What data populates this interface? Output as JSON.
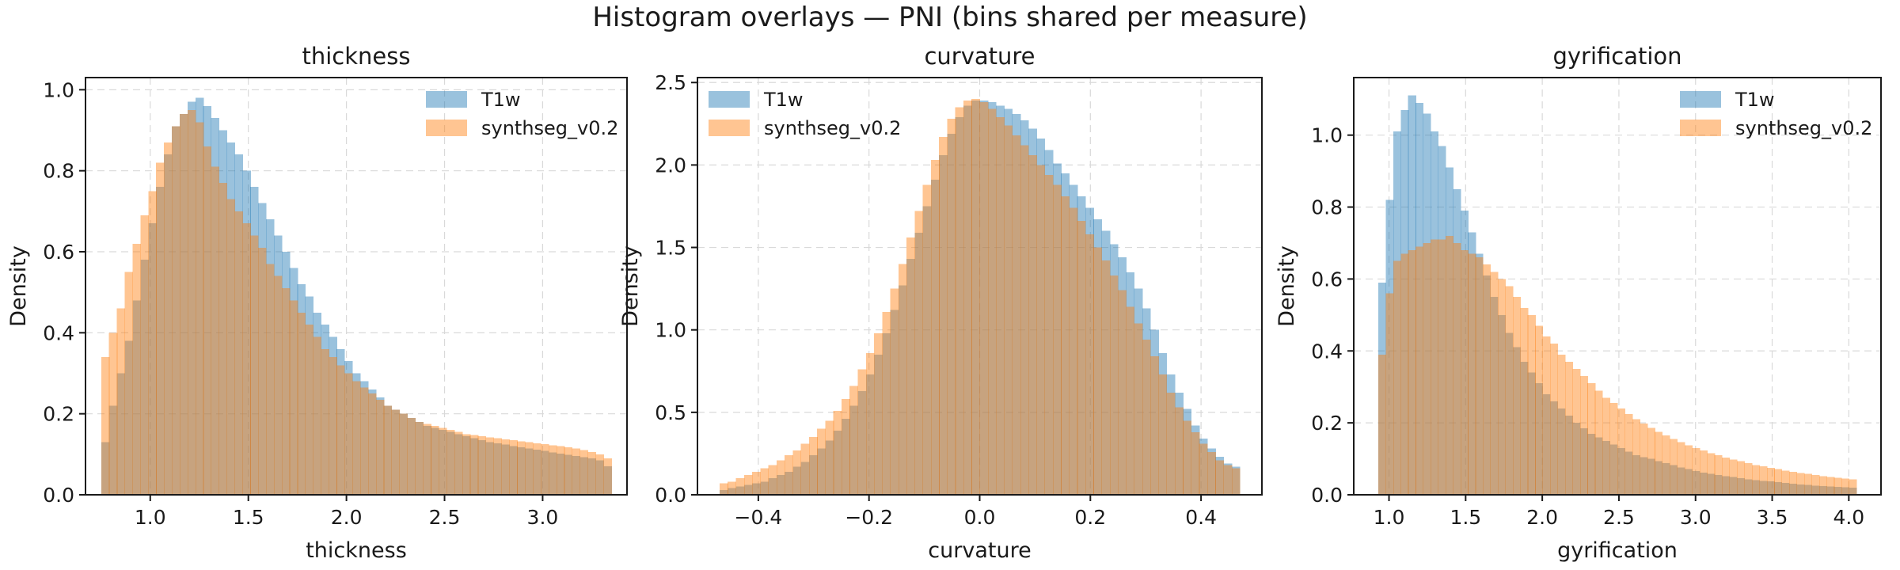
{
  "figure": {
    "suptitle": "Histogram overlays — PNI (bins shared per measure)"
  },
  "chart_data": [
    {
      "type": "histogram",
      "title": "thickness",
      "xlabel": "thickness",
      "ylabel": "Density",
      "xlim": [
        0.67,
        3.43
      ],
      "ylim": [
        0,
        1.03
      ],
      "xticks": [
        "1.0",
        "1.5",
        "2.0",
        "2.5",
        "3.0"
      ],
      "yticks": [
        "0.0",
        "0.2",
        "0.4",
        "0.6",
        "0.8",
        "1.0"
      ],
      "grid": true,
      "legend_position": "top-right",
      "bins": {
        "start": 0.75,
        "end": 3.35,
        "count": 65
      },
      "series": [
        {
          "name": "T1w",
          "color": "#1f77b4",
          "alpha": 0.45,
          "values": [
            0.13,
            0.22,
            0.3,
            0.38,
            0.48,
            0.58,
            0.67,
            0.76,
            0.84,
            0.91,
            0.94,
            0.97,
            0.98,
            0.96,
            0.93,
            0.9,
            0.87,
            0.84,
            0.8,
            0.76,
            0.72,
            0.68,
            0.64,
            0.6,
            0.56,
            0.52,
            0.49,
            0.45,
            0.42,
            0.39,
            0.36,
            0.33,
            0.3,
            0.28,
            0.26,
            0.24,
            0.22,
            0.21,
            0.2,
            0.19,
            0.18,
            0.17,
            0.165,
            0.16,
            0.155,
            0.15,
            0.145,
            0.14,
            0.135,
            0.13,
            0.127,
            0.124,
            0.12,
            0.117,
            0.114,
            0.111,
            0.108,
            0.105,
            0.102,
            0.099,
            0.096,
            0.093,
            0.09,
            0.085,
            0.07
          ]
        },
        {
          "name": "synthseg_v0.2",
          "color": "#ff7f0e",
          "alpha": 0.45,
          "values": [
            0.34,
            0.4,
            0.46,
            0.55,
            0.62,
            0.69,
            0.75,
            0.82,
            0.87,
            0.91,
            0.94,
            0.95,
            0.92,
            0.86,
            0.81,
            0.77,
            0.73,
            0.7,
            0.67,
            0.64,
            0.61,
            0.57,
            0.54,
            0.51,
            0.48,
            0.45,
            0.42,
            0.39,
            0.36,
            0.34,
            0.32,
            0.3,
            0.28,
            0.265,
            0.25,
            0.235,
            0.22,
            0.21,
            0.2,
            0.19,
            0.18,
            0.175,
            0.17,
            0.165,
            0.16,
            0.155,
            0.15,
            0.148,
            0.145,
            0.142,
            0.14,
            0.137,
            0.135,
            0.132,
            0.13,
            0.127,
            0.125,
            0.122,
            0.12,
            0.117,
            0.114,
            0.11,
            0.106,
            0.1,
            0.09
          ]
        }
      ]
    },
    {
      "type": "histogram",
      "title": "curvature",
      "xlabel": "curvature",
      "ylabel": "Density",
      "xlim": [
        -0.51,
        0.51
      ],
      "ylim": [
        0,
        2.53
      ],
      "xticks": [
        "−0.4",
        "−0.2",
        "0.0",
        "0.2",
        "0.4"
      ],
      "yticks": [
        "0.0",
        "0.5",
        "1.0",
        "1.5",
        "2.0",
        "2.5"
      ],
      "grid": true,
      "legend_position": "top-left",
      "bins": {
        "start": -0.47,
        "end": 0.47,
        "count": 64
      },
      "series": [
        {
          "name": "T1w",
          "color": "#1f77b4",
          "alpha": 0.45,
          "values": [
            0.03,
            0.04,
            0.05,
            0.06,
            0.07,
            0.08,
            0.1,
            0.12,
            0.14,
            0.17,
            0.2,
            0.24,
            0.28,
            0.33,
            0.39,
            0.46,
            0.54,
            0.63,
            0.73,
            0.85,
            0.98,
            1.12,
            1.27,
            1.43,
            1.59,
            1.75,
            1.91,
            2.06,
            2.19,
            2.29,
            2.36,
            2.39,
            2.39,
            2.38,
            2.36,
            2.34,
            2.31,
            2.27,
            2.22,
            2.16,
            2.09,
            2.01,
            1.95,
            1.88,
            1.81,
            1.74,
            1.67,
            1.6,
            1.52,
            1.44,
            1.35,
            1.25,
            1.13,
            1.0,
            0.86,
            0.73,
            0.62,
            0.52,
            0.42,
            0.34,
            0.28,
            0.23,
            0.19,
            0.17
          ]
        },
        {
          "name": "synthseg_v0.2",
          "color": "#ff7f0e",
          "alpha": 0.45,
          "values": [
            0.07,
            0.08,
            0.1,
            0.12,
            0.14,
            0.16,
            0.18,
            0.21,
            0.24,
            0.27,
            0.31,
            0.35,
            0.4,
            0.45,
            0.51,
            0.58,
            0.66,
            0.76,
            0.86,
            0.98,
            1.11,
            1.25,
            1.4,
            1.56,
            1.72,
            1.88,
            2.03,
            2.17,
            2.28,
            2.35,
            2.39,
            2.4,
            2.38,
            2.34,
            2.29,
            2.24,
            2.18,
            2.12,
            2.06,
            2.0,
            1.94,
            1.88,
            1.81,
            1.74,
            1.66,
            1.58,
            1.5,
            1.42,
            1.33,
            1.24,
            1.14,
            1.04,
            0.94,
            0.84,
            0.73,
            0.62,
            0.53,
            0.45,
            0.38,
            0.31,
            0.26,
            0.21,
            0.18,
            0.16
          ]
        }
      ]
    },
    {
      "type": "histogram",
      "title": "gyrification",
      "xlabel": "gyrification",
      "ylabel": "Density",
      "xlim": [
        0.77,
        4.21
      ],
      "ylim": [
        0,
        1.16
      ],
      "xticks": [
        "1.0",
        "1.5",
        "2.0",
        "2.5",
        "3.0",
        "3.5",
        "4.0"
      ],
      "yticks": [
        "0.0",
        "0.2",
        "0.4",
        "0.6",
        "0.8",
        "1.0"
      ],
      "grid": true,
      "legend_position": "top-right",
      "bins": {
        "start": 0.93,
        "end": 4.05,
        "count": 64
      },
      "series": [
        {
          "name": "T1w",
          "color": "#1f77b4",
          "alpha": 0.45,
          "values": [
            0.59,
            0.82,
            1.01,
            1.07,
            1.11,
            1.09,
            1.06,
            1.01,
            0.97,
            0.91,
            0.85,
            0.79,
            0.73,
            0.67,
            0.61,
            0.55,
            0.5,
            0.45,
            0.41,
            0.37,
            0.34,
            0.31,
            0.28,
            0.26,
            0.24,
            0.22,
            0.2,
            0.185,
            0.17,
            0.16,
            0.15,
            0.14,
            0.13,
            0.12,
            0.11,
            0.105,
            0.1,
            0.094,
            0.088,
            0.082,
            0.076,
            0.071,
            0.066,
            0.062,
            0.058,
            0.055,
            0.052,
            0.049,
            0.046,
            0.043,
            0.041,
            0.039,
            0.037,
            0.035,
            0.033,
            0.031,
            0.029,
            0.027,
            0.025,
            0.024,
            0.023,
            0.022,
            0.021,
            0.02
          ]
        },
        {
          "name": "synthseg_v0.2",
          "color": "#ff7f0e",
          "alpha": 0.45,
          "values": [
            0.39,
            0.56,
            0.65,
            0.67,
            0.68,
            0.69,
            0.7,
            0.71,
            0.71,
            0.72,
            0.7,
            0.68,
            0.67,
            0.66,
            0.64,
            0.62,
            0.6,
            0.58,
            0.55,
            0.52,
            0.5,
            0.47,
            0.44,
            0.42,
            0.39,
            0.37,
            0.35,
            0.33,
            0.31,
            0.29,
            0.27,
            0.255,
            0.24,
            0.225,
            0.21,
            0.198,
            0.186,
            0.175,
            0.165,
            0.155,
            0.146,
            0.138,
            0.13,
            0.123,
            0.116,
            0.11,
            0.104,
            0.098,
            0.093,
            0.088,
            0.083,
            0.079,
            0.075,
            0.071,
            0.067,
            0.064,
            0.061,
            0.058,
            0.055,
            0.052,
            0.049,
            0.047,
            0.045,
            0.043
          ]
        }
      ]
    }
  ]
}
